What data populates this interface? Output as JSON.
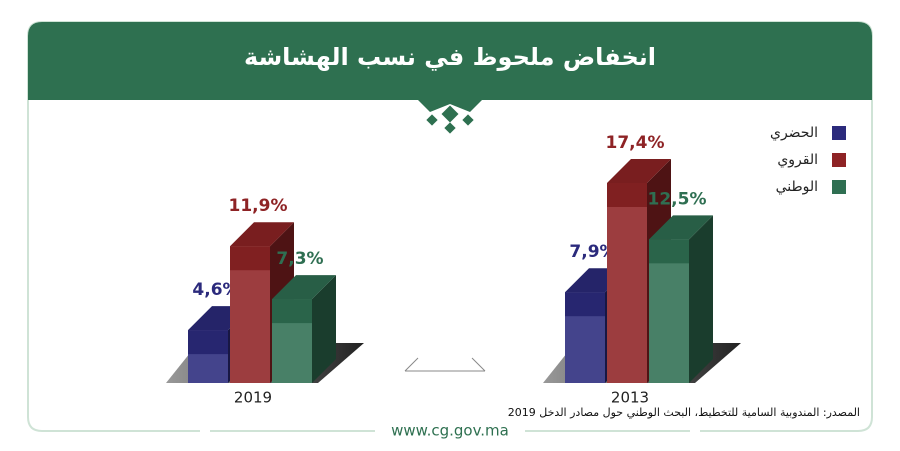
{
  "chart_data": {
    "type": "bar3d",
    "title": "انخفاض ملحوظ في نسب الهشاشة",
    "categories": [
      "2019",
      "2013"
    ],
    "series": [
      {
        "name": "الحضري",
        "color": "#2b2a7c",
        "values": [
          4.6,
          7.9
        ],
        "value_labels": [
          "4,6%",
          "7,9%"
        ]
      },
      {
        "name": "القروي",
        "color": "#8e2325",
        "values": [
          11.9,
          17.4
        ],
        "value_labels": [
          "11,9%",
          "17,4%"
        ]
      },
      {
        "name": "الوطني",
        "color": "#2f6f52",
        "values": [
          7.3,
          12.5
        ],
        "value_labels": [
          "7,3%",
          "12,5%"
        ]
      }
    ],
    "source": "المصدر: المندوبية السامية للتخطيط، البحث الوطني حول مصادر الدخل 2019",
    "website": "www.cg.gov.ma"
  }
}
